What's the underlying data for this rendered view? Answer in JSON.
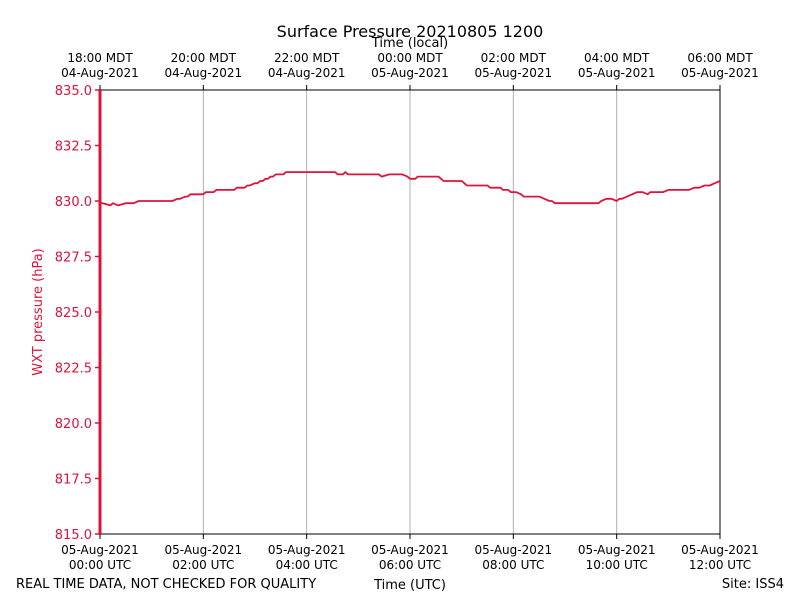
{
  "chart_data": {
    "type": "line",
    "title": "Surface Pressure 20210805 1200",
    "top_axis_label": "Time (local)",
    "xlabel": "Time (UTC)",
    "ylabel": "WXT pressure (hPa)",
    "footer_left": "REAL TIME DATA, NOT CHECKED FOR QUALITY",
    "footer_right": "Site: ISS4",
    "ylim": [
      815.0,
      835.0
    ],
    "xlim_hours": [
      0,
      12
    ],
    "y_ticks": [
      "815.0",
      "817.5",
      "820.0",
      "822.5",
      "825.0",
      "827.5",
      "830.0",
      "832.5",
      "835.0"
    ],
    "x_ticks_utc": [
      {
        "date": "05-Aug-2021",
        "time": "00:00 UTC"
      },
      {
        "date": "05-Aug-2021",
        "time": "02:00 UTC"
      },
      {
        "date": "05-Aug-2021",
        "time": "04:00 UTC"
      },
      {
        "date": "05-Aug-2021",
        "time": "06:00 UTC"
      },
      {
        "date": "05-Aug-2021",
        "time": "08:00 UTC"
      },
      {
        "date": "05-Aug-2021",
        "time": "10:00 UTC"
      },
      {
        "date": "05-Aug-2021",
        "time": "12:00 UTC"
      }
    ],
    "x_ticks_local": [
      {
        "time": "18:00 MDT",
        "date": "04-Aug-2021"
      },
      {
        "time": "20:00 MDT",
        "date": "04-Aug-2021"
      },
      {
        "time": "22:00 MDT",
        "date": "04-Aug-2021"
      },
      {
        "time": "00:00 MDT",
        "date": "05-Aug-2021"
      },
      {
        "time": "02:00 MDT",
        "date": "05-Aug-2021"
      },
      {
        "time": "04:00 MDT",
        "date": "05-Aug-2021"
      },
      {
        "time": "06:00 MDT",
        "date": "05-Aug-2021"
      }
    ],
    "grid": "vertical",
    "colors": {
      "series": "#dc143c",
      "axis": "#000000",
      "grid": "#b0b0b0"
    },
    "series": [
      {
        "x_hours": [
          0.0,
          0.05,
          0.2,
          0.25,
          0.35,
          0.5,
          0.55,
          0.65,
          0.75,
          0.8,
          1.0,
          1.2,
          1.4,
          1.5,
          1.55,
          1.65,
          1.7,
          1.75,
          1.8,
          2.0,
          2.05,
          2.2,
          2.25,
          2.6,
          2.65,
          2.8,
          2.85,
          2.9,
          3.0,
          3.05,
          3.1,
          3.15,
          3.2,
          3.25,
          3.3,
          3.35,
          3.4,
          3.45,
          3.5,
          3.55,
          3.6,
          3.7,
          3.75,
          3.8,
          3.85,
          3.9,
          4.0,
          4.2,
          4.4,
          4.55,
          4.6,
          4.7,
          4.75,
          4.8,
          4.85,
          4.9,
          4.95,
          5.0,
          5.2,
          5.25,
          5.4,
          5.45,
          5.6,
          5.8,
          5.85,
          5.95,
          6.0,
          6.1,
          6.15,
          6.2,
          6.3,
          6.5,
          6.55,
          6.6,
          6.65,
          6.75,
          7.0,
          7.05,
          7.1,
          7.15,
          7.3,
          7.4,
          7.5,
          7.55,
          7.6,
          7.65,
          7.75,
          7.8,
          7.9,
          7.95,
          8.0,
          8.05,
          8.15,
          8.2,
          8.3,
          8.4,
          8.5,
          8.6,
          8.7,
          8.75,
          8.8,
          8.95,
          9.0,
          9.05,
          9.2,
          9.3,
          9.4,
          9.6,
          9.65,
          9.7,
          9.8,
          9.9,
          10.0,
          10.05,
          10.1,
          10.2,
          10.3,
          10.4,
          10.5,
          10.6,
          10.65,
          10.7,
          10.8,
          10.9,
          11.0,
          11.1,
          11.2,
          11.3,
          11.4,
          11.5,
          11.6,
          11.7,
          11.75,
          11.8,
          11.9,
          12.0
        ],
        "values": [
          829.9,
          829.9,
          829.8,
          829.9,
          829.8,
          829.9,
          829.9,
          829.9,
          830.0,
          830.0,
          830.0,
          830.0,
          830.0,
          830.1,
          830.1,
          830.2,
          830.2,
          830.3,
          830.3,
          830.3,
          830.4,
          830.4,
          830.5,
          830.5,
          830.6,
          830.6,
          830.7,
          830.7,
          830.8,
          830.8,
          830.9,
          830.9,
          831.0,
          831.0,
          831.1,
          831.1,
          831.2,
          831.2,
          831.2,
          831.2,
          831.3,
          831.3,
          831.3,
          831.3,
          831.3,
          831.3,
          831.3,
          831.3,
          831.3,
          831.3,
          831.2,
          831.2,
          831.3,
          831.2,
          831.2,
          831.2,
          831.2,
          831.2,
          831.2,
          831.2,
          831.2,
          831.1,
          831.2,
          831.2,
          831.2,
          831.1,
          831.0,
          831.0,
          831.1,
          831.1,
          831.1,
          831.1,
          831.1,
          831.0,
          830.9,
          830.9,
          830.9,
          830.8,
          830.7,
          830.7,
          830.7,
          830.7,
          830.7,
          830.6,
          830.6,
          830.6,
          830.6,
          830.5,
          830.5,
          830.4,
          830.4,
          830.4,
          830.3,
          830.2,
          830.2,
          830.2,
          830.2,
          830.1,
          830.0,
          830.0,
          829.9,
          829.9,
          829.9,
          829.9,
          829.9,
          829.9,
          829.9,
          829.9,
          829.9,
          830.0,
          830.1,
          830.1,
          830.0,
          830.1,
          830.1,
          830.2,
          830.3,
          830.4,
          830.4,
          830.3,
          830.4,
          830.4,
          830.4,
          830.4,
          830.5,
          830.5,
          830.5,
          830.5,
          830.5,
          830.6,
          830.6,
          830.7,
          830.7,
          830.7,
          830.8,
          830.9
        ]
      }
    ]
  }
}
